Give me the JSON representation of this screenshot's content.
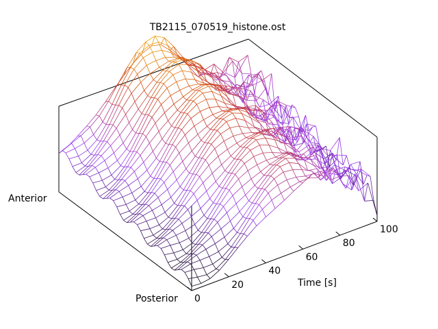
{
  "chart_data": {
    "type": "surface",
    "title": "TB2115_070519_histone.ost",
    "y_axis_label_low": "Anterior",
    "y_axis_label_high": "Posterior",
    "xlabel": "Time [s]",
    "xlim": [
      0,
      100
    ],
    "xticks": [
      0,
      20,
      40,
      60,
      80,
      100
    ],
    "xtick_labels": [
      "0",
      "20",
      "40",
      "60",
      "80",
      "100"
    ],
    "grid": false,
    "legend": "none",
    "colormap": [
      "#000000",
      "#9a3cf5",
      "#d04018",
      "#ffd400"
    ],
    "time_samples": [
      0,
      5,
      10,
      15,
      20,
      25,
      30,
      35,
      40,
      45,
      50,
      55,
      60,
      65,
      70,
      75,
      80,
      85,
      90,
      95,
      100
    ],
    "anterior_profile": [
      0.3,
      0.32,
      0.36,
      0.42,
      0.5,
      0.6,
      0.7,
      0.78,
      0.84,
      0.87,
      0.88,
      0.85,
      0.78,
      0.7,
      0.62,
      0.55,
      0.5,
      0.46,
      0.43,
      0.41,
      0.4
    ],
    "posterior_profile": [
      0.05,
      0.06,
      0.07,
      0.09,
      0.12,
      0.16,
      0.21,
      0.27,
      0.33,
      0.39,
      0.44,
      0.48,
      0.5,
      0.5,
      0.47,
      0.43,
      0.38,
      0.33,
      0.28,
      0.24,
      0.2
    ],
    "noise_onset_time": 60,
    "position_samples": 40
  }
}
